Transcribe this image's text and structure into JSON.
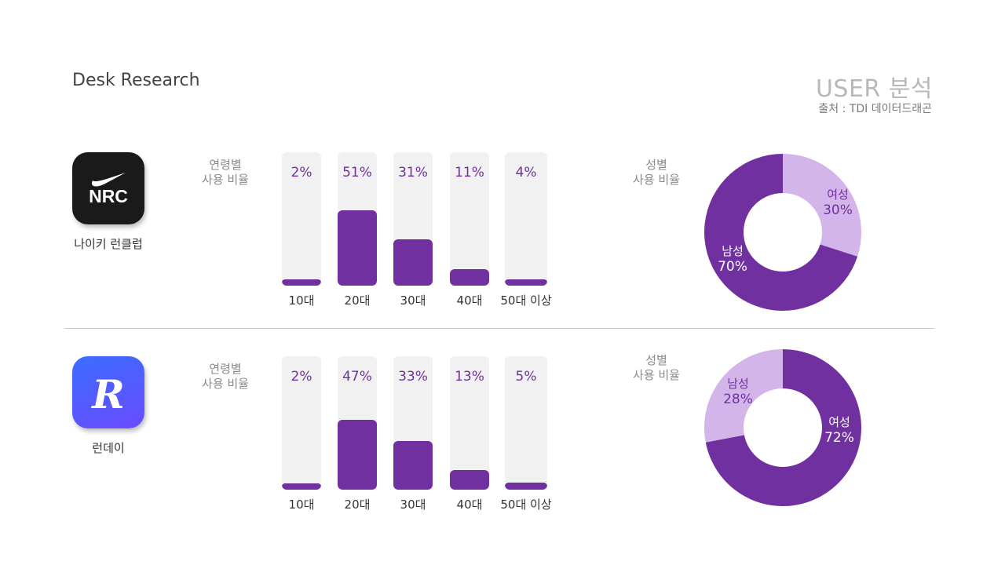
{
  "header": {
    "page_title": "Desk Research",
    "section_title": "USER 분석",
    "source": "출처 : TDI 데이터드래곤"
  },
  "colors": {
    "accent": "#7030a0",
    "accent_light": "#d3b5ea",
    "track": "#f1f1f1",
    "nrc_icon": "#1a1a1a",
    "runday_icon_top": "#3b6cff",
    "runday_icon_bottom": "#6a4cff"
  },
  "apps": [
    {
      "name": "나이키 런클럽",
      "icon": "nike-swoosh-nrc-icon",
      "icon_text": "NRC"
    },
    {
      "name": "런데이",
      "icon": "runday-r-icon",
      "icon_text": "R"
    }
  ],
  "chart_data": [
    {
      "type": "bar",
      "app": "나이키 런클럽",
      "title": "연령별 사용 비율",
      "title_lines": [
        "연령별",
        "사용 비율"
      ],
      "categories": [
        "10대",
        "20대",
        "30대",
        "40대",
        "50대 이상"
      ],
      "values": [
        2,
        51,
        31,
        11,
        4
      ],
      "labels": [
        "2%",
        "51%",
        "31%",
        "11%",
        "4%"
      ],
      "ylim": [
        0,
        90
      ]
    },
    {
      "type": "pie",
      "app": "나이키 런클럽",
      "title": "성별 사용 비율",
      "title_lines": [
        "성별",
        "사용 비율"
      ],
      "donut": true,
      "slices": [
        {
          "label": "여성",
          "value": 30,
          "value_label": "30%",
          "color": "#d3b5ea"
        },
        {
          "label": "남성",
          "value": 70,
          "value_label": "70%",
          "color": "#7030a0"
        }
      ]
    },
    {
      "type": "bar",
      "app": "런데이",
      "title": "연령별 사용 비율",
      "title_lines": [
        "연령별",
        "사용 비율"
      ],
      "categories": [
        "10대",
        "20대",
        "30대",
        "40대",
        "50대 이상"
      ],
      "values": [
        2,
        47,
        33,
        13,
        5
      ],
      "labels": [
        "2%",
        "47%",
        "33%",
        "13%",
        "5%"
      ],
      "ylim": [
        0,
        90
      ]
    },
    {
      "type": "pie",
      "app": "런데이",
      "title": "성별 사용 비율",
      "title_lines": [
        "성별",
        "사용 비율"
      ],
      "donut": true,
      "slices": [
        {
          "label": "여성",
          "value": 72,
          "value_label": "72%",
          "color": "#7030a0"
        },
        {
          "label": "남성",
          "value": 28,
          "value_label": "28%",
          "color": "#d3b5ea"
        }
      ]
    }
  ]
}
